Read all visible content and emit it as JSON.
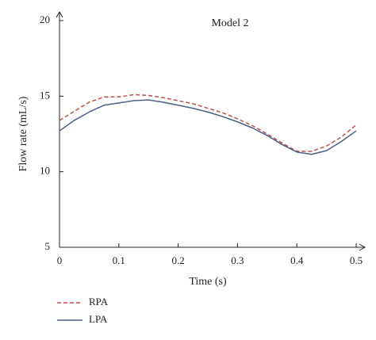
{
  "chart_data": {
    "type": "line",
    "title": "Model 2",
    "x_label": "Time (s)",
    "y_label": "Flow rate (mL/s)",
    "x": [
      0,
      0.025,
      0.05,
      0.075,
      0.1,
      0.125,
      0.15,
      0.175,
      0.2,
      0.225,
      0.25,
      0.275,
      0.3,
      0.325,
      0.35,
      0.375,
      0.4,
      0.425,
      0.45,
      0.475,
      0.5
    ],
    "series": [
      {
        "name": "RPA",
        "color": "#c0504d",
        "dash": true,
        "values": [
          13.4,
          14.0,
          14.6,
          14.95,
          14.95,
          15.1,
          15.05,
          14.9,
          14.7,
          14.5,
          14.2,
          13.9,
          13.5,
          13.05,
          12.5,
          11.9,
          11.35,
          11.35,
          11.7,
          12.3,
          13.1
        ]
      },
      {
        "name": "LPA",
        "color": "#4a5f85",
        "dash": false,
        "values": [
          12.7,
          13.4,
          13.95,
          14.4,
          14.55,
          14.7,
          14.75,
          14.6,
          14.4,
          14.2,
          13.95,
          13.65,
          13.3,
          12.9,
          12.4,
          11.8,
          11.3,
          11.15,
          11.4,
          12.0,
          12.7
        ]
      }
    ],
    "xlim": [
      0,
      0.5
    ],
    "xticks": [
      0,
      0.1,
      0.2,
      0.3,
      0.4,
      0.5
    ],
    "ylim": [
      5,
      20
    ],
    "yticks": [
      5,
      10,
      15,
      20
    ],
    "legend": "bottom-left"
  }
}
